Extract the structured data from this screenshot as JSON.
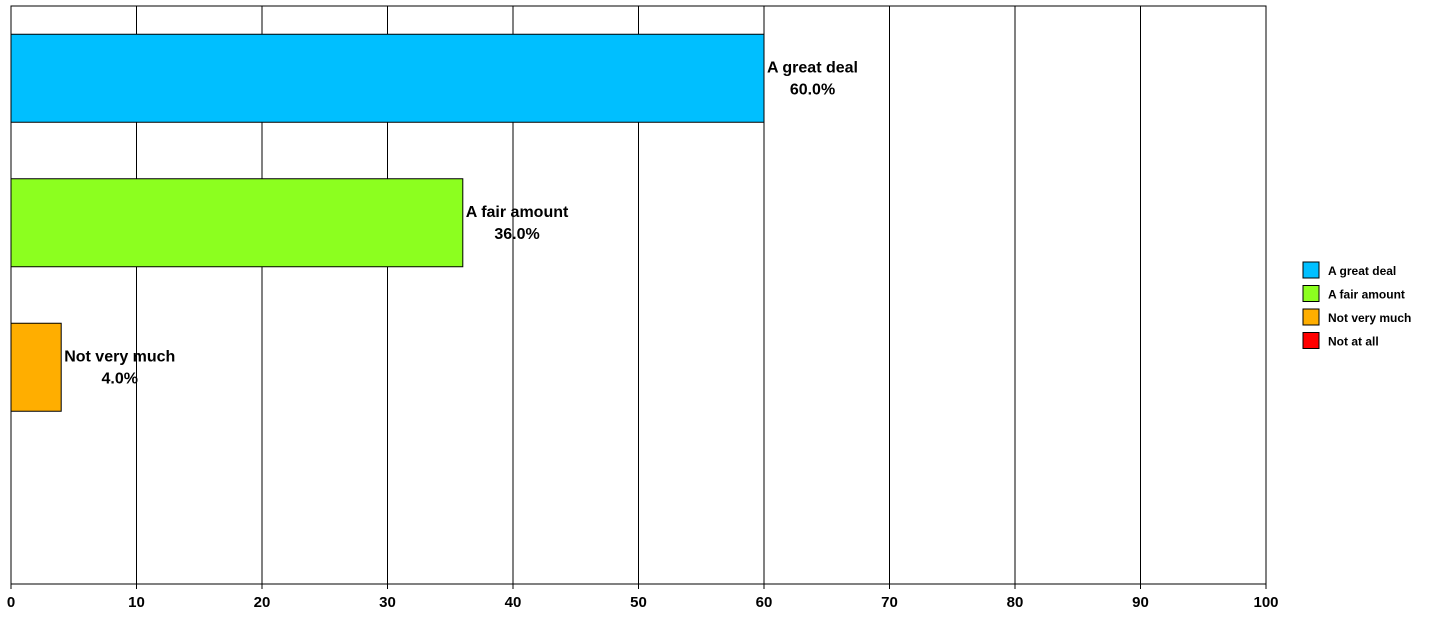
{
  "chart_data": {
    "type": "bar",
    "orientation": "horizontal",
    "title": "",
    "xlabel": "",
    "ylabel": "",
    "xlim": [
      0,
      100
    ],
    "xticks": [
      "0",
      "10",
      "20",
      "30",
      "40",
      "50",
      "60",
      "70",
      "80",
      "90",
      "100"
    ],
    "grid": true,
    "legend_position": "right",
    "categories": [
      "A great deal",
      "A fair amount",
      "Not very much",
      "Not at all"
    ],
    "values": [
      60.0,
      36.0,
      4.0,
      0.0
    ],
    "data_labels": [
      "60.0%",
      "36.0%",
      "4.0%",
      ""
    ],
    "colors": [
      "#00BFFF",
      "#8CFF1F",
      "#FFAE00",
      "#FF0000"
    ]
  }
}
